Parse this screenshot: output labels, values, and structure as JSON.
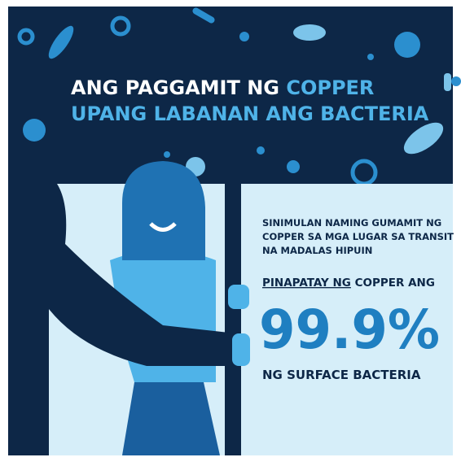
{
  "header": {
    "title_line1_white": "ANG PAGGAMIT NG",
    "title_line1_accent": "COPPER",
    "title_line2": "UPANG LABANAN ANG BACTERIA"
  },
  "body": {
    "intro": [
      "SINIMULAN NAMING GUMAMIT NG",
      "COPPER SA MGA LUGAR SA TRANSIT",
      "NA MADALAS HIPUIN"
    ],
    "kills_underlined": "PINAPATAY NG",
    "kills_rest": "COPPER ANG",
    "stat": "99.9%",
    "stat_caption": "NG SURFACE BACTERIA"
  }
}
